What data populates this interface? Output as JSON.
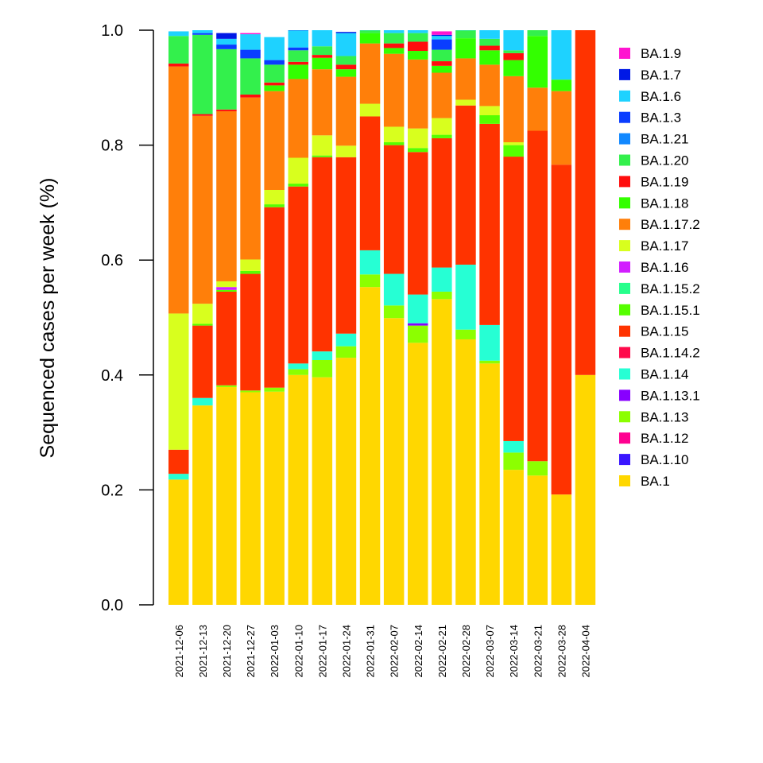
{
  "chart_data": {
    "type": "bar",
    "stacked": true,
    "title": "",
    "xlabel": "",
    "ylabel": "Sequenced cases per week (%)",
    "ylim": [
      0,
      1
    ],
    "yticks": [
      "0.0",
      "0.2",
      "0.4",
      "0.6",
      "0.8",
      "1.0"
    ],
    "grid": false,
    "legend_position": "right",
    "categories": [
      "2021-12-06",
      "2021-12-13",
      "2021-12-20",
      "2021-12-27",
      "2022-01-03",
      "2022-01-10",
      "2022-01-17",
      "2022-01-24",
      "2022-01-31",
      "2022-02-07",
      "2022-02-14",
      "2022-02-21",
      "2022-02-28",
      "2022-03-07",
      "2022-03-14",
      "2022-03-21",
      "2022-03-28",
      "2022-04-04"
    ],
    "series": [
      {
        "name": "BA.1",
        "color": "#FFD700",
        "values": [
          0.218,
          0.347,
          0.379,
          0.37,
          0.371,
          0.4,
          0.396,
          0.43,
          0.553,
          0.499,
          0.456,
          0.532,
          0.462,
          0.42,
          0.235,
          0.225,
          0.192,
          0.4
        ]
      },
      {
        "name": "BA.1.10",
        "color": "#3A16FF",
        "values": [
          0,
          0,
          0,
          0,
          0,
          0,
          0,
          0,
          0,
          0,
          0,
          0,
          0,
          0,
          0,
          0,
          0,
          0
        ]
      },
      {
        "name": "BA.1.12",
        "color": "#FF0090",
        "values": [
          0,
          0,
          0,
          0,
          0,
          0,
          0,
          0,
          0,
          0,
          0,
          0,
          0,
          0,
          0,
          0,
          0,
          0
        ]
      },
      {
        "name": "BA.1.13",
        "color": "#8CFF00",
        "values": [
          0,
          0,
          0.003,
          0.003,
          0.007,
          0.01,
          0.03,
          0.02,
          0.022,
          0.022,
          0.03,
          0.013,
          0.017,
          0.005,
          0.03,
          0.025,
          0,
          0
        ]
      },
      {
        "name": "BA.1.13.1",
        "color": "#8800FF",
        "values": [
          0,
          0,
          0,
          0,
          0,
          0,
          0,
          0,
          0,
          0,
          0.004,
          0,
          0,
          0,
          0,
          0,
          0,
          0
        ]
      },
      {
        "name": "BA.1.14",
        "color": "#26FFD4",
        "values": [
          0.01,
          0.013,
          0,
          0,
          0,
          0.01,
          0.015,
          0.022,
          0.042,
          0.055,
          0.05,
          0.042,
          0.113,
          0.062,
          0.02,
          0,
          0,
          0
        ]
      },
      {
        "name": "BA.1.14.2",
        "color": "#FF0A4B",
        "values": [
          0,
          0,
          0,
          0,
          0,
          0,
          0,
          0,
          0,
          0,
          0,
          0,
          0,
          0,
          0,
          0,
          0,
          0
        ]
      },
      {
        "name": "BA.1.15",
        "color": "#FF3300",
        "values": [
          0.042,
          0.126,
          0.163,
          0.203,
          0.314,
          0.308,
          0.338,
          0.307,
          0.233,
          0.224,
          0.248,
          0.225,
          0.277,
          0.35,
          0.495,
          0.575,
          0.574,
          0.6
        ]
      },
      {
        "name": "BA.1.15.1",
        "color": "#55FF00",
        "values": [
          0,
          0.003,
          0.003,
          0.005,
          0.005,
          0.005,
          0.003,
          0,
          0,
          0.005,
          0.007,
          0.006,
          0,
          0.015,
          0.02,
          0,
          0,
          0
        ]
      },
      {
        "name": "BA.1.15.2",
        "color": "#26FF8C",
        "values": [
          0,
          0,
          0,
          0,
          0,
          0,
          0,
          0,
          0,
          0,
          0,
          0,
          0,
          0,
          0,
          0,
          0,
          0
        ]
      },
      {
        "name": "BA.1.16",
        "color": "#D21EFF",
        "values": [
          0,
          0,
          0.005,
          0,
          0,
          0,
          0,
          0,
          0,
          0,
          0,
          0,
          0,
          0,
          0,
          0,
          0,
          0
        ]
      },
      {
        "name": "BA.1.17",
        "color": "#D8FF1E",
        "values": [
          0.237,
          0.035,
          0.01,
          0.02,
          0.025,
          0.045,
          0.035,
          0.02,
          0.022,
          0.027,
          0.034,
          0.029,
          0.01,
          0.016,
          0.005,
          0,
          0,
          0
        ]
      },
      {
        "name": "BA.1.17.2",
        "color": "#FF7F0A",
        "values": [
          0.43,
          0.327,
          0.296,
          0.282,
          0.172,
          0.137,
          0.115,
          0.12,
          0.105,
          0.127,
          0.12,
          0.079,
          0.072,
          0.072,
          0.115,
          0.075,
          0.128,
          0
        ]
      },
      {
        "name": "BA.1.18",
        "color": "#33FF00",
        "values": [
          0,
          0,
          0,
          0,
          0.01,
          0.025,
          0.02,
          0.013,
          0.018,
          0.01,
          0.015,
          0.012,
          0.035,
          0.025,
          0.028,
          0.09,
          0.02,
          0
        ]
      },
      {
        "name": "BA.1.19",
        "color": "#FF0D0D",
        "values": [
          0.005,
          0.003,
          0.003,
          0.005,
          0.005,
          0.005,
          0.005,
          0.008,
          0,
          0.008,
          0.016,
          0.008,
          0,
          0.008,
          0.012,
          0,
          0,
          0
        ]
      },
      {
        "name": "BA.1.20",
        "color": "#33F04C",
        "values": [
          0.048,
          0.138,
          0.105,
          0.063,
          0.031,
          0.02,
          0.015,
          0.015,
          0.015,
          0.018,
          0.015,
          0.02,
          0.027,
          0.012,
          0.005,
          0.01,
          0,
          0
        ]
      },
      {
        "name": "BA.1.21",
        "color": "#1288FF",
        "values": [
          0,
          0,
          0,
          0,
          0,
          0,
          0,
          0,
          0,
          0,
          0,
          0,
          0,
          0,
          0,
          0,
          0,
          0
        ]
      },
      {
        "name": "BA.1.3",
        "color": "#0A3DFF",
        "values": [
          0,
          0.003,
          0.008,
          0.015,
          0.008,
          0.005,
          0,
          0,
          0,
          0,
          0,
          0.018,
          0,
          0,
          0,
          0,
          0,
          0
        ]
      },
      {
        "name": "BA.1.6",
        "color": "#1ED2FF",
        "values": [
          0.008,
          0.005,
          0.01,
          0.027,
          0.04,
          0.03,
          0.028,
          0.04,
          0.01,
          0.015,
          0.005,
          0.006,
          0.013,
          0.015,
          0.035,
          0,
          0.086,
          0
        ]
      },
      {
        "name": "BA.1.7",
        "color": "#0019E6",
        "values": [
          0,
          0,
          0.01,
          0,
          0,
          0.002,
          0,
          0.002,
          0,
          0,
          0,
          0.002,
          0,
          0,
          0,
          0,
          0,
          0
        ]
      },
      {
        "name": "BA.1.9",
        "color": "#FF14D0",
        "values": [
          0,
          0,
          0,
          0.002,
          0,
          0,
          0,
          0,
          0,
          0,
          0,
          0.006,
          0,
          0,
          0,
          0,
          0,
          0
        ]
      }
    ]
  }
}
